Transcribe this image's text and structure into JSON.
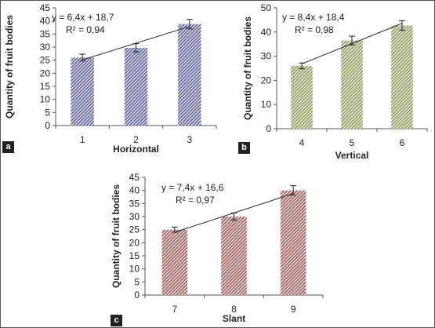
{
  "chart_data": [
    {
      "panel": "a",
      "type": "bar",
      "categories": [
        "1",
        "2",
        "3"
      ],
      "values": [
        26,
        29.7,
        38.8
      ],
      "error": [
        1.3,
        1.6,
        1.8
      ],
      "ylim": [
        0,
        45
      ],
      "yticks": [
        "0",
        "5",
        "10",
        "15",
        "20",
        "25",
        "30",
        "35",
        "40",
        "45"
      ],
      "xlabel": "Horizontal",
      "ylabel": "Quantity of fruit bodies",
      "equation": "y = 6,4x + 18,7",
      "r2": "R² = 0,94",
      "trendline": {
        "slope": 6.4,
        "intercept": 18.7
      },
      "bar_color": "#6b6fa8",
      "grid": false
    },
    {
      "panel": "b",
      "type": "bar",
      "categories": [
        "4",
        "5",
        "6"
      ],
      "values": [
        26,
        36.5,
        42.7
      ],
      "error": [
        1.2,
        1.8,
        2
      ],
      "ylim": [
        0,
        50
      ],
      "yticks": [
        "0",
        "10",
        "20",
        "30",
        "40",
        "50"
      ],
      "xlabel": "Vertical",
      "ylabel": "Quantity of fruit bodies",
      "equation": "y = 8,4x + 18,4",
      "r2": "R² = 0,98",
      "trendline": {
        "slope": 8.4,
        "intercept": 18.4
      },
      "bar_color": "#9aa36a",
      "grid": false
    },
    {
      "panel": "c",
      "type": "bar",
      "categories": [
        "7",
        "8",
        "9"
      ],
      "values": [
        25,
        30,
        40
      ],
      "error": [
        1,
        1.4,
        1.8
      ],
      "ylim": [
        0,
        45
      ],
      "yticks": [
        "0",
        "5",
        "10",
        "15",
        "20",
        "25",
        "30",
        "35",
        "40",
        "45"
      ],
      "xlabel": "Slant",
      "ylabel": "Quantity of fruit bodies",
      "equation": "y = 7,4x + 16,6",
      "r2": "R² = 0,97",
      "trendline": {
        "slope": 7.4,
        "intercept": 16.6
      },
      "bar_color": "#a86a68",
      "grid": false
    }
  ]
}
